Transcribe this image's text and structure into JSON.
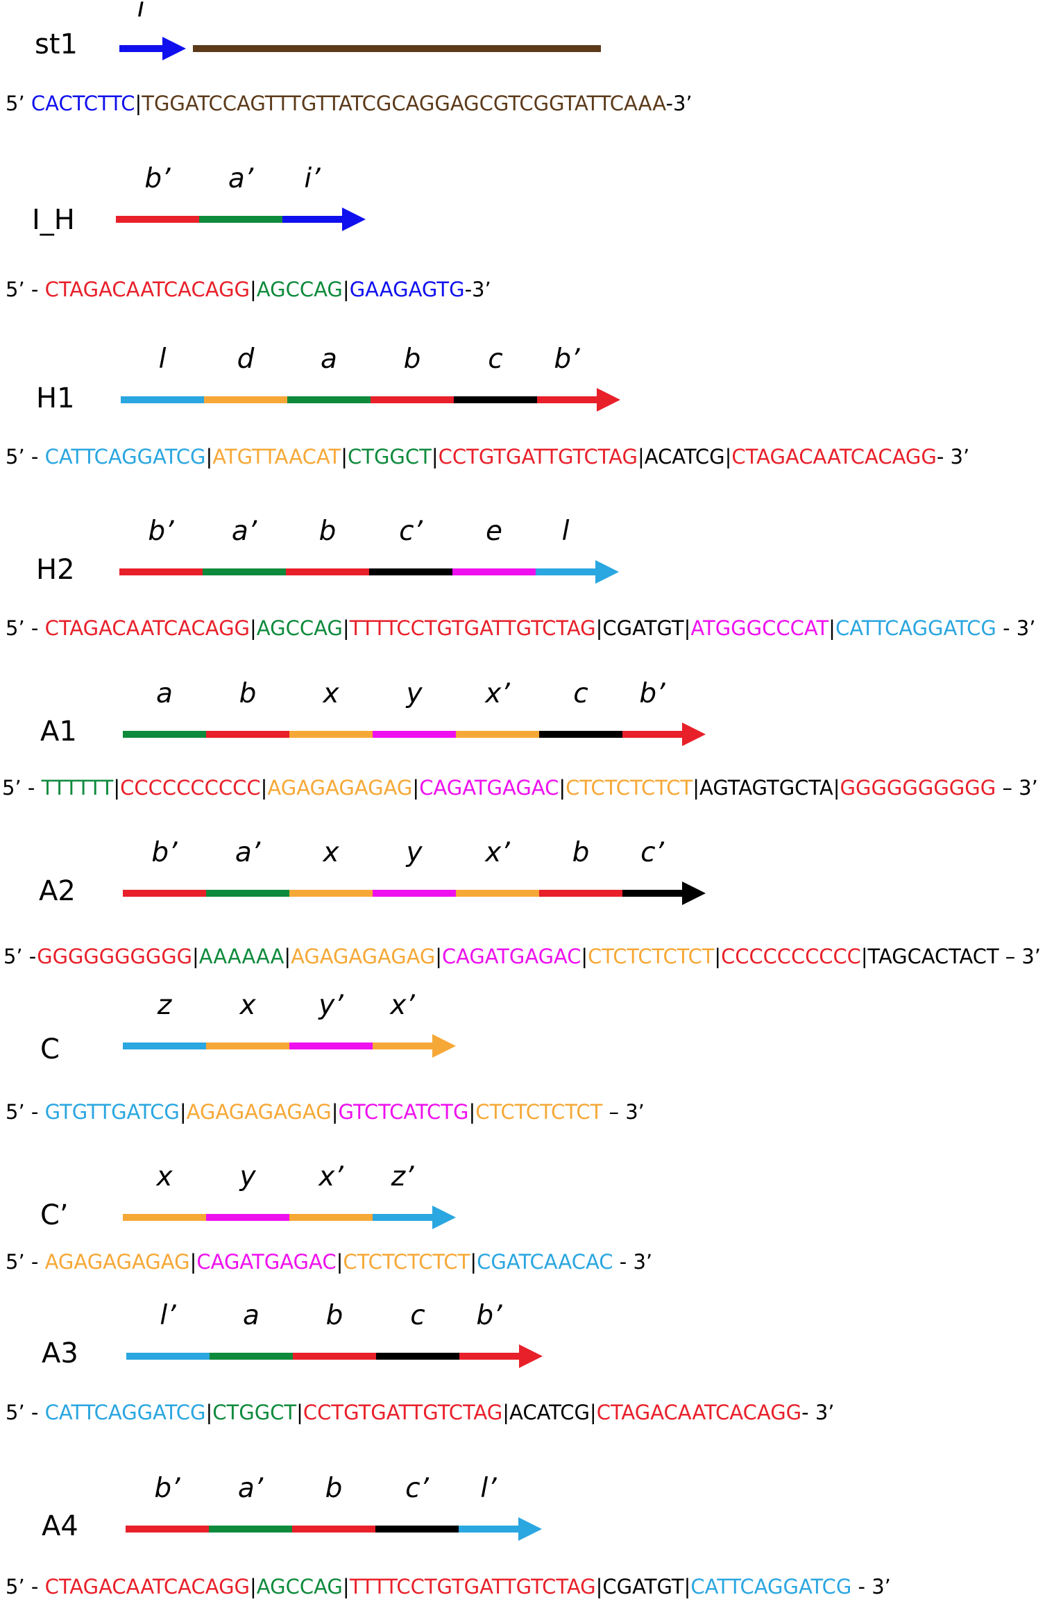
{
  "colors": {
    "blue": "#1010ee",
    "brown": "#5c3a1a",
    "red": "#e8202a",
    "green": "#0e8a3c",
    "orange": "#f6a837",
    "black": "#000000",
    "magenta": "#ee10ee",
    "cyan": "#2aa6e0"
  },
  "strands": [
    {
      "name": "st1",
      "domains": [
        {
          "label": "i",
          "color": "blue",
          "arrow": true
        },
        {
          "label": "",
          "color": "brown"
        }
      ],
      "sequence": [
        {
          "text": "5’ ",
          "color": "black"
        },
        {
          "text": "CACTCTTC",
          "color": "blue"
        },
        {
          "text": "|",
          "color": "black"
        },
        {
          "text": "TGGATCCAGTTTGTTATCGCAGGAGCGTCGGTATTCAAA",
          "color": "brown"
        },
        {
          "text": "-3’",
          "color": "black"
        }
      ]
    },
    {
      "name": "I_H",
      "domains": [
        {
          "label": "b’",
          "color": "red"
        },
        {
          "label": "a’",
          "color": "green"
        },
        {
          "label": "i’",
          "color": "blue",
          "arrow": true
        }
      ],
      "sequence": [
        {
          "text": "5’ - ",
          "color": "black"
        },
        {
          "text": "CTAGACAATCACAGG",
          "color": "red"
        },
        {
          "text": "|",
          "color": "black"
        },
        {
          "text": "AGCCAG",
          "color": "green"
        },
        {
          "text": "|",
          "color": "black"
        },
        {
          "text": "GAAGAGTG",
          "color": "blue"
        },
        {
          "text": "-3’",
          "color": "black"
        }
      ]
    },
    {
      "name": "H1",
      "domains": [
        {
          "label": "l",
          "color": "cyan"
        },
        {
          "label": "d",
          "color": "orange"
        },
        {
          "label": "a",
          "color": "green"
        },
        {
          "label": "b",
          "color": "red"
        },
        {
          "label": "c",
          "color": "black"
        },
        {
          "label": "b’",
          "color": "red",
          "arrow": true
        }
      ],
      "sequence": [
        {
          "text": "5’ - ",
          "color": "black"
        },
        {
          "text": "CATTCAGGATCG",
          "color": "cyan"
        },
        {
          "text": "|",
          "color": "black"
        },
        {
          "text": "ATGTTAACAT",
          "color": "orange"
        },
        {
          "text": "|",
          "color": "black"
        },
        {
          "text": "CTGGCT",
          "color": "green"
        },
        {
          "text": "|",
          "color": "black"
        },
        {
          "text": "CCTGTGATTGTCTAG",
          "color": "red"
        },
        {
          "text": "|",
          "color": "black"
        },
        {
          "text": "ACATCG",
          "color": "black"
        },
        {
          "text": "|",
          "color": "black"
        },
        {
          "text": "CTAGACAATCACAGG",
          "color": "red"
        },
        {
          "text": "- 3’",
          "color": "black"
        }
      ]
    },
    {
      "name": "H2",
      "domains": [
        {
          "label": "b’",
          "color": "red"
        },
        {
          "label": "a’",
          "color": "green"
        },
        {
          "label": "b",
          "color": "red"
        },
        {
          "label": "c’",
          "color": "black"
        },
        {
          "label": "e",
          "color": "magenta"
        },
        {
          "label": "l",
          "color": "cyan",
          "arrow": true
        }
      ],
      "sequence": [
        {
          "text": "5’ - ",
          "color": "black"
        },
        {
          "text": "CTAGACAATCACAGG",
          "color": "red"
        },
        {
          "text": "|",
          "color": "black"
        },
        {
          "text": "AGCCAG",
          "color": "green"
        },
        {
          "text": "|",
          "color": "black"
        },
        {
          "text": "TTTTCCTGTGATTGTCTAG",
          "color": "red"
        },
        {
          "text": "|",
          "color": "black"
        },
        {
          "text": "CGATGT",
          "color": "black"
        },
        {
          "text": "|",
          "color": "black"
        },
        {
          "text": "ATGGGCCCAT",
          "color": "magenta"
        },
        {
          "text": "|",
          "color": "black"
        },
        {
          "text": "CATTCAGGATCG",
          "color": "cyan"
        },
        {
          "text": " - 3’",
          "color": "black"
        }
      ]
    },
    {
      "name": "A1",
      "domains": [
        {
          "label": "a",
          "color": "green"
        },
        {
          "label": "b",
          "color": "red"
        },
        {
          "label": "x",
          "color": "orange"
        },
        {
          "label": "y",
          "color": "magenta"
        },
        {
          "label": "x’",
          "color": "orange"
        },
        {
          "label": "c",
          "color": "black"
        },
        {
          "label": "b’",
          "color": "red",
          "arrow": true
        }
      ],
      "sequence": [
        {
          "text": "5’ - ",
          "color": "black"
        },
        {
          "text": "TTTTTT",
          "color": "green"
        },
        {
          "text": "|",
          "color": "black"
        },
        {
          "text": "CCCCCCCCCC",
          "color": "red"
        },
        {
          "text": "|",
          "color": "black"
        },
        {
          "text": "AGAGAGAGAG",
          "color": "orange"
        },
        {
          "text": "|",
          "color": "black"
        },
        {
          "text": "CAGATGAGAC",
          "color": "magenta"
        },
        {
          "text": "|",
          "color": "black"
        },
        {
          "text": "CTCTCTCTCT",
          "color": "orange"
        },
        {
          "text": "|",
          "color": "black"
        },
        {
          "text": "AGTAGTGCTA",
          "color": "black"
        },
        {
          "text": "|",
          "color": "black"
        },
        {
          "text": "GGGGGGGGGG",
          "color": "red"
        },
        {
          "text": " – 3’",
          "color": "black"
        }
      ]
    },
    {
      "name": "A2",
      "domains": [
        {
          "label": "b’",
          "color": "red"
        },
        {
          "label": "a’",
          "color": "green"
        },
        {
          "label": "x",
          "color": "orange"
        },
        {
          "label": "y",
          "color": "magenta"
        },
        {
          "label": "x’",
          "color": "orange"
        },
        {
          "label": "b",
          "color": "red"
        },
        {
          "label": "c’",
          "color": "black",
          "arrow": true
        }
      ],
      "sequence": [
        {
          "text": "5’ -",
          "color": "black"
        },
        {
          "text": "GGGGGGGGGG",
          "color": "red"
        },
        {
          "text": "|",
          "color": "black"
        },
        {
          "text": "AAAAAA",
          "color": "green"
        },
        {
          "text": "|",
          "color": "black"
        },
        {
          "text": "AGAGAGAGAG",
          "color": "orange"
        },
        {
          "text": "|",
          "color": "black"
        },
        {
          "text": "CAGATGAGAC",
          "color": "magenta"
        },
        {
          "text": "|",
          "color": "black"
        },
        {
          "text": "CTCTCTCTCT",
          "color": "orange"
        },
        {
          "text": "|",
          "color": "black"
        },
        {
          "text": "CCCCCCCCCC",
          "color": "red"
        },
        {
          "text": "|",
          "color": "black"
        },
        {
          "text": "TAGCACTACT",
          "color": "black"
        },
        {
          "text": " – 3’",
          "color": "black"
        }
      ]
    },
    {
      "name": "C",
      "domains": [
        {
          "label": "z",
          "color": "cyan"
        },
        {
          "label": "x",
          "color": "orange"
        },
        {
          "label": "y’",
          "color": "magenta"
        },
        {
          "label": "x’",
          "color": "orange",
          "arrow": true
        }
      ],
      "sequence": [
        {
          "text": "5’ - ",
          "color": "black"
        },
        {
          "text": "GTGTTGATCG",
          "color": "cyan"
        },
        {
          "text": "|",
          "color": "black"
        },
        {
          "text": "AGAGAGAGAG",
          "color": "orange"
        },
        {
          "text": "|",
          "color": "black"
        },
        {
          "text": "GTCTCATCTG",
          "color": "magenta"
        },
        {
          "text": "|",
          "color": "black"
        },
        {
          "text": "CTCTCTCTCT",
          "color": "orange"
        },
        {
          "text": " – 3’",
          "color": "black"
        }
      ]
    },
    {
      "name": "C’",
      "domains": [
        {
          "label": "x",
          "color": "orange"
        },
        {
          "label": "y",
          "color": "magenta"
        },
        {
          "label": "x’",
          "color": "orange"
        },
        {
          "label": "z’",
          "color": "cyan",
          "arrow": true
        }
      ],
      "sequence": [
        {
          "text": "5’ - ",
          "color": "black"
        },
        {
          "text": "AGAGAGAGAG",
          "color": "orange"
        },
        {
          "text": "|",
          "color": "black"
        },
        {
          "text": "CAGATGAGAC",
          "color": "magenta"
        },
        {
          "text": "|",
          "color": "black"
        },
        {
          "text": "CTCTCTCTCT",
          "color": "orange"
        },
        {
          "text": "|",
          "color": "black"
        },
        {
          "text": "CGATCAACAC",
          "color": "cyan"
        },
        {
          "text": " - 3’",
          "color": "black"
        }
      ]
    },
    {
      "name": "A3",
      "domains": [
        {
          "label": "l’",
          "color": "cyan"
        },
        {
          "label": "a",
          "color": "green"
        },
        {
          "label": "b",
          "color": "red"
        },
        {
          "label": "c",
          "color": "black"
        },
        {
          "label": "b’",
          "color": "red",
          "arrow": true
        }
      ],
      "sequence": [
        {
          "text": "5’ - ",
          "color": "black"
        },
        {
          "text": "CATTCAGGATCG",
          "color": "cyan"
        },
        {
          "text": "|",
          "color": "black"
        },
        {
          "text": "CTGGCT",
          "color": "green"
        },
        {
          "text": "|",
          "color": "black"
        },
        {
          "text": "CCTGTGATTGTCTAG",
          "color": "red"
        },
        {
          "text": "|",
          "color": "black"
        },
        {
          "text": "ACATCG",
          "color": "black"
        },
        {
          "text": "|",
          "color": "black"
        },
        {
          "text": "CTAGACAATCACAGG",
          "color": "red"
        },
        {
          "text": "- 3’",
          "color": "black"
        }
      ]
    },
    {
      "name": "A4",
      "domains": [
        {
          "label": "b’",
          "color": "red"
        },
        {
          "label": "a’",
          "color": "green"
        },
        {
          "label": "b",
          "color": "red"
        },
        {
          "label": "c’",
          "color": "black"
        },
        {
          "label": "l’",
          "color": "cyan",
          "arrow": true
        }
      ],
      "sequence": [
        {
          "text": "5’ - ",
          "color": "black"
        },
        {
          "text": "CTAGACAATCACAGG",
          "color": "red"
        },
        {
          "text": "|",
          "color": "black"
        },
        {
          "text": "AGCCAG",
          "color": "green"
        },
        {
          "text": "|",
          "color": "black"
        },
        {
          "text": "TTTTCCTGTGATTGTCTAG",
          "color": "red"
        },
        {
          "text": "|",
          "color": "black"
        },
        {
          "text": "CGATGT",
          "color": "black"
        },
        {
          "text": "|",
          "color": "black"
        },
        {
          "text": "CATTCAGGATCG",
          "color": "cyan"
        },
        {
          "text": " - 3’",
          "color": "black"
        }
      ]
    }
  ]
}
